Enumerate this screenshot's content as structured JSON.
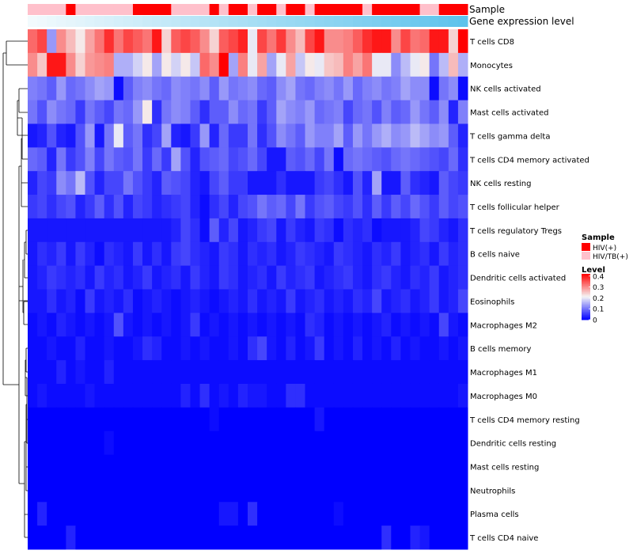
{
  "chart_data": {
    "type": "heatmap",
    "title": "",
    "annotation_tracks": {
      "sample": {
        "label": "Sample"
      },
      "gene_expression_level": {
        "label": "Gene expression level"
      }
    },
    "rows": [
      "T cells CD8",
      "Monocytes",
      "NK cells activated",
      "Mast cells activated",
      "T cells gamma delta",
      "T cells CD4 memory activated",
      "NK cells resting",
      "T cells follicular helper",
      "T cells regulatory  Tregs",
      "B cells naive",
      "Dendritic cells activated",
      "Eosinophils",
      "Macrophages M2",
      "B cells memory",
      "Macrophages M1",
      "Macrophages M0",
      "T cells CD4 memory resting",
      "Dendritic cells resting",
      "Mast cells resting",
      "Neutrophils",
      "Plasma cells",
      "T cells CD4 naive"
    ],
    "sample_groups": [
      "HIV/TB(+)",
      "HIV/TB(+)",
      "HIV/TB(+)",
      "HIV/TB(+)",
      "HIV(+)",
      "HIV/TB(+)",
      "HIV/TB(+)",
      "HIV/TB(+)",
      "HIV/TB(+)",
      "HIV/TB(+)",
      "HIV/TB(+)",
      "HIV(+)",
      "HIV(+)",
      "HIV(+)",
      "HIV(+)",
      "HIV/TB(+)",
      "HIV/TB(+)",
      "HIV/TB(+)",
      "HIV/TB(+)",
      "HIV(+)",
      "HIV/TB(+)",
      "HIV(+)",
      "HIV(+)",
      "HIV/TB(+)",
      "HIV(+)",
      "HIV(+)",
      "HIV/TB(+)",
      "HIV(+)",
      "HIV(+)",
      "HIV/TB(+)",
      "HIV(+)",
      "HIV(+)",
      "HIV(+)",
      "HIV(+)",
      "HIV(+)",
      "HIV/TB(+)",
      "HIV(+)",
      "HIV(+)",
      "HIV(+)",
      "HIV(+)",
      "HIV(+)",
      "HIV/TB(+)",
      "HIV/TB(+)",
      "HIV(+)",
      "HIV(+)",
      "HIV(+)"
    ],
    "gene_expression_level": [
      0.0,
      0.022,
      0.044,
      0.067,
      0.089,
      0.111,
      0.133,
      0.156,
      0.178,
      0.2,
      0.222,
      0.244,
      0.267,
      0.289,
      0.311,
      0.333,
      0.356,
      0.378,
      0.4,
      0.422,
      0.444,
      0.467,
      0.489,
      0.511,
      0.533,
      0.556,
      0.578,
      0.6,
      0.622,
      0.644,
      0.667,
      0.689,
      0.711,
      0.733,
      0.756,
      0.778,
      0.8,
      0.822,
      0.844,
      0.867,
      0.889,
      0.911,
      0.933,
      0.956,
      0.978,
      1.0
    ],
    "values": [
      [
        0.33,
        0.36,
        0.13,
        0.3,
        0.26,
        0.22,
        0.28,
        0.32,
        0.38,
        0.32,
        0.36,
        0.34,
        0.32,
        0.4,
        0.24,
        0.34,
        0.36,
        0.34,
        0.3,
        0.24,
        0.34,
        0.36,
        0.39,
        0.2,
        0.36,
        0.32,
        0.37,
        0.3,
        0.26,
        0.36,
        0.4,
        0.3,
        0.3,
        0.31,
        0.34,
        0.38,
        0.4,
        0.4,
        0.3,
        0.36,
        0.32,
        0.33,
        0.4,
        0.4,
        0.24,
        0.42
      ],
      [
        0.3,
        0.25,
        0.4,
        0.4,
        0.3,
        0.24,
        0.29,
        0.3,
        0.31,
        0.15,
        0.15,
        0.18,
        0.22,
        0.14,
        0.22,
        0.18,
        0.22,
        0.17,
        0.33,
        0.3,
        0.42,
        0.14,
        0.31,
        0.2,
        0.28,
        0.14,
        0.2,
        0.28,
        0.17,
        0.22,
        0.2,
        0.25,
        0.26,
        0.31,
        0.28,
        0.32,
        0.2,
        0.2,
        0.12,
        0.16,
        0.2,
        0.22,
        0.1,
        0.16,
        0.26,
        0.15
      ],
      [
        0.11,
        0.1,
        0.08,
        0.13,
        0.09,
        0.1,
        0.12,
        0.14,
        0.13,
        0.01,
        0.08,
        0.11,
        0.12,
        0.1,
        0.09,
        0.12,
        0.11,
        0.1,
        0.12,
        0.08,
        0.13,
        0.1,
        0.11,
        0.12,
        0.09,
        0.08,
        0.12,
        0.14,
        0.1,
        0.09,
        0.11,
        0.12,
        0.1,
        0.13,
        0.09,
        0.11,
        0.12,
        0.1,
        0.11,
        0.14,
        0.12,
        0.12,
        0.01,
        0.1,
        0.12,
        0.01
      ],
      [
        0.1,
        0.07,
        0.12,
        0.1,
        0.09,
        0.05,
        0.1,
        0.08,
        0.06,
        0.1,
        0.09,
        0.13,
        0.22,
        0.04,
        0.1,
        0.12,
        0.11,
        0.08,
        0.04,
        0.08,
        0.08,
        0.12,
        0.09,
        0.1,
        0.05,
        0.08,
        0.14,
        0.12,
        0.11,
        0.13,
        0.09,
        0.1,
        0.11,
        0.06,
        0.09,
        0.1,
        0.07,
        0.11,
        0.08,
        0.09,
        0.13,
        0.1,
        0.08,
        0.12,
        0.03,
        0.11
      ],
      [
        0.02,
        0.03,
        0.07,
        0.03,
        0.02,
        0.07,
        0.13,
        0.02,
        0.1,
        0.2,
        0.08,
        0.1,
        0.04,
        0.06,
        0.14,
        0.03,
        0.02,
        0.05,
        0.13,
        0.03,
        0.09,
        0.05,
        0.05,
        0.1,
        0.04,
        0.07,
        0.12,
        0.1,
        0.08,
        0.13,
        0.11,
        0.11,
        0.14,
        0.08,
        0.13,
        0.1,
        0.13,
        0.15,
        0.12,
        0.13,
        0.16,
        0.14,
        0.12,
        0.13,
        0.08,
        0.03
      ],
      [
        0.09,
        0.08,
        0.03,
        0.1,
        0.05,
        0.07,
        0.11,
        0.06,
        0.1,
        0.08,
        0.07,
        0.1,
        0.05,
        0.09,
        0.05,
        0.14,
        0.07,
        0.03,
        0.07,
        0.08,
        0.09,
        0.06,
        0.07,
        0.09,
        0.06,
        0.02,
        0.02,
        0.08,
        0.07,
        0.09,
        0.06,
        0.1,
        0.01,
        0.09,
        0.1,
        0.09,
        0.08,
        0.07,
        0.09,
        0.1,
        0.09,
        0.08,
        0.07,
        0.06,
        0.09,
        0.04
      ],
      [
        0.03,
        0.06,
        0.05,
        0.12,
        0.1,
        0.16,
        0.07,
        0.03,
        0.06,
        0.06,
        0.1,
        0.07,
        0.05,
        0.03,
        0.08,
        0.07,
        0.06,
        0.03,
        0.02,
        0.06,
        0.08,
        0.05,
        0.05,
        0.02,
        0.02,
        0.02,
        0.04,
        0.02,
        0.02,
        0.02,
        0.05,
        0.06,
        0.04,
        0.02,
        0.07,
        0.03,
        0.14,
        0.02,
        0.02,
        0.08,
        0.04,
        0.03,
        0.02,
        0.08,
        0.06,
        0.05
      ],
      [
        0.05,
        0.06,
        0.04,
        0.06,
        0.07,
        0.03,
        0.05,
        0.08,
        0.04,
        0.07,
        0.03,
        0.06,
        0.05,
        0.03,
        0.04,
        0.05,
        0.06,
        0.03,
        0.01,
        0.04,
        0.06,
        0.03,
        0.06,
        0.07,
        0.1,
        0.08,
        0.09,
        0.06,
        0.1,
        0.05,
        0.07,
        0.08,
        0.06,
        0.05,
        0.07,
        0.04,
        0.08,
        0.05,
        0.08,
        0.06,
        0.09,
        0.07,
        0.05,
        0.08,
        0.06,
        0.07
      ],
      [
        0.02,
        0.02,
        0.02,
        0.02,
        0.02,
        0.02,
        0.02,
        0.02,
        0.02,
        0.02,
        0.02,
        0.02,
        0.02,
        0.02,
        0.02,
        0.03,
        0.06,
        0.04,
        0.01,
        0.08,
        0.03,
        0.06,
        0.02,
        0.03,
        0.05,
        0.06,
        0.02,
        0.05,
        0.03,
        0.02,
        0.05,
        0.04,
        0.01,
        0.04,
        0.03,
        0.04,
        0.01,
        0.02,
        0.02,
        0.02,
        0.03,
        0.06,
        0.05,
        0.03,
        0.02,
        0.04
      ],
      [
        0.02,
        0.04,
        0.03,
        0.05,
        0.02,
        0.05,
        0.03,
        0.01,
        0.04,
        0.03,
        0.02,
        0.05,
        0.02,
        0.04,
        0.02,
        0.05,
        0.06,
        0.04,
        0.03,
        0.02,
        0.05,
        0.04,
        0.02,
        0.04,
        0.03,
        0.04,
        0.02,
        0.03,
        0.05,
        0.04,
        0.03,
        0.02,
        0.05,
        0.04,
        0.03,
        0.02,
        0.04,
        0.03,
        0.05,
        0.02,
        0.03,
        0.04,
        0.02,
        0.05,
        0.03,
        0.04
      ],
      [
        0.02,
        0.03,
        0.05,
        0.04,
        0.03,
        0.04,
        0.02,
        0.05,
        0.03,
        0.04,
        0.02,
        0.03,
        0.05,
        0.02,
        0.03,
        0.04,
        0.02,
        0.05,
        0.03,
        0.02,
        0.05,
        0.04,
        0.02,
        0.03,
        0.04,
        0.02,
        0.05,
        0.03,
        0.04,
        0.05,
        0.02,
        0.03,
        0.04,
        0.05,
        0.03,
        0.02,
        0.04,
        0.05,
        0.03,
        0.02,
        0.04,
        0.03,
        0.05,
        0.02,
        0.03,
        0.04
      ],
      [
        0.02,
        0.02,
        0.04,
        0.02,
        0.03,
        0.01,
        0.05,
        0.02,
        0.03,
        0.02,
        0.04,
        0.01,
        0.02,
        0.03,
        0.02,
        0.01,
        0.02,
        0.03,
        0.02,
        0.01,
        0.02,
        0.03,
        0.02,
        0.04,
        0.02,
        0.03,
        0.02,
        0.05,
        0.02,
        0.03,
        0.04,
        0.02,
        0.03,
        0.02,
        0.04,
        0.03,
        0.06,
        0.02,
        0.03,
        0.04,
        0.02,
        0.03,
        0.05,
        0.02,
        0.03,
        0.06
      ],
      [
        0.01,
        0.02,
        0.01,
        0.03,
        0.02,
        0.01,
        0.02,
        0.01,
        0.02,
        0.07,
        0.02,
        0.01,
        0.02,
        0.01,
        0.02,
        0.01,
        0.02,
        0.05,
        0.01,
        0.02,
        0.01,
        0.02,
        0.01,
        0.02,
        0.01,
        0.02,
        0.01,
        0.02,
        0.01,
        0.04,
        0.03,
        0.01,
        0.02,
        0.01,
        0.02,
        0.01,
        0.02,
        0.03,
        0.01,
        0.02,
        0.01,
        0.02,
        0.01,
        0.06,
        0.02,
        0.01
      ],
      [
        0.01,
        0.01,
        0.02,
        0.01,
        0.01,
        0.03,
        0.01,
        0.01,
        0.02,
        0.01,
        0.01,
        0.02,
        0.04,
        0.03,
        0.01,
        0.01,
        0.02,
        0.01,
        0.02,
        0.01,
        0.01,
        0.02,
        0.01,
        0.04,
        0.06,
        0.02,
        0.01,
        0.03,
        0.01,
        0.02,
        0.05,
        0.01,
        0.02,
        0.01,
        0.03,
        0.01,
        0.02,
        0.01,
        0.03,
        0.01,
        0.02,
        0.01,
        0.01,
        0.02,
        0.01,
        0.02
      ],
      [
        0.01,
        0.01,
        0.01,
        0.03,
        0.01,
        0.02,
        0.01,
        0.01,
        0.03,
        0.01,
        0.01,
        0.01,
        0.01,
        0.01,
        0.01,
        0.01,
        0.01,
        0.01,
        0.01,
        0.01,
        0.01,
        0.01,
        0.01,
        0.01,
        0.01,
        0.01,
        0.01,
        0.01,
        0.01,
        0.01,
        0.01,
        0.01,
        0.01,
        0.01,
        0.01,
        0.01,
        0.01,
        0.01,
        0.01,
        0.01,
        0.01,
        0.01,
        0.01,
        0.01,
        0.01,
        0.01
      ],
      [
        0.01,
        0.02,
        0.01,
        0.01,
        0.01,
        0.01,
        0.02,
        0.01,
        0.01,
        0.01,
        0.01,
        0.01,
        0.01,
        0.01,
        0.01,
        0.01,
        0.03,
        0.01,
        0.04,
        0.01,
        0.02,
        0.01,
        0.03,
        0.02,
        0.02,
        0.01,
        0.01,
        0.04,
        0.04,
        0.01,
        0.01,
        0.01,
        0.01,
        0.01,
        0.01,
        0.01,
        0.01,
        0.01,
        0.01,
        0.01,
        0.01,
        0.01,
        0.01,
        0.01,
        0.01,
        0.02
      ],
      [
        0.0,
        0.0,
        0.0,
        0.0,
        0.0,
        0.0,
        0.0,
        0.0,
        0.0,
        0.0,
        0.0,
        0.0,
        0.0,
        0.0,
        0.0,
        0.0,
        0.0,
        0.0,
        0.0,
        0.01,
        0.0,
        0.0,
        0.0,
        0.0,
        0.0,
        0.0,
        0.0,
        0.0,
        0.0,
        0.0,
        0.02,
        0.0,
        0.0,
        0.0,
        0.0,
        0.0,
        0.0,
        0.0,
        0.0,
        0.0,
        0.0,
        0.0,
        0.0,
        0.0,
        0.0,
        0.0
      ],
      [
        0.0,
        0.0,
        0.0,
        0.0,
        0.0,
        0.0,
        0.0,
        0.0,
        0.01,
        0.0,
        0.0,
        0.0,
        0.0,
        0.0,
        0.0,
        0.0,
        0.0,
        0.0,
        0.0,
        0.0,
        0.0,
        0.0,
        0.0,
        0.0,
        0.0,
        0.0,
        0.0,
        0.0,
        0.0,
        0.0,
        0.0,
        0.0,
        0.0,
        0.0,
        0.0,
        0.0,
        0.0,
        0.0,
        0.0,
        0.0,
        0.0,
        0.0,
        0.0,
        0.0,
        0.0,
        0.0
      ],
      [
        0.0,
        0.0,
        0.0,
        0.0,
        0.0,
        0.0,
        0.0,
        0.0,
        0.0,
        0.0,
        0.0,
        0.0,
        0.0,
        0.0,
        0.0,
        0.0,
        0.0,
        0.0,
        0.0,
        0.0,
        0.0,
        0.0,
        0.0,
        0.0,
        0.0,
        0.0,
        0.0,
        0.0,
        0.0,
        0.0,
        0.0,
        0.0,
        0.0,
        0.0,
        0.0,
        0.0,
        0.0,
        0.0,
        0.0,
        0.0,
        0.0,
        0.0,
        0.0,
        0.0,
        0.0,
        0.0
      ],
      [
        0.0,
        0.0,
        0.0,
        0.0,
        0.0,
        0.0,
        0.0,
        0.0,
        0.0,
        0.0,
        0.0,
        0.0,
        0.0,
        0.0,
        0.0,
        0.0,
        0.0,
        0.0,
        0.0,
        0.0,
        0.0,
        0.0,
        0.0,
        0.0,
        0.0,
        0.0,
        0.0,
        0.0,
        0.0,
        0.0,
        0.0,
        0.0,
        0.0,
        0.0,
        0.0,
        0.0,
        0.0,
        0.0,
        0.0,
        0.0,
        0.0,
        0.0,
        0.0,
        0.0,
        0.0,
        0.0
      ],
      [
        0.0,
        0.03,
        0.0,
        0.0,
        0.0,
        0.0,
        0.0,
        0.0,
        0.0,
        0.0,
        0.0,
        0.0,
        0.0,
        0.0,
        0.0,
        0.0,
        0.0,
        0.0,
        0.0,
        0.0,
        0.02,
        0.02,
        0.0,
        0.04,
        0.0,
        0.0,
        0.0,
        0.0,
        0.0,
        0.0,
        0.0,
        0.0,
        0.01,
        0.0,
        0.0,
        0.0,
        0.0,
        0.0,
        0.0,
        0.0,
        0.0,
        0.0,
        0.0,
        0.0,
        0.0,
        0.0
      ],
      [
        0.0,
        0.0,
        0.0,
        0.0,
        0.03,
        0.0,
        0.0,
        0.0,
        0.0,
        0.0,
        0.0,
        0.0,
        0.0,
        0.0,
        0.0,
        0.0,
        0.0,
        0.0,
        0.0,
        0.0,
        0.0,
        0.0,
        0.0,
        0.0,
        0.0,
        0.0,
        0.0,
        0.0,
        0.0,
        0.0,
        0.0,
        0.0,
        0.0,
        0.0,
        0.0,
        0.0,
        0.0,
        0.04,
        0.0,
        0.0,
        0.03,
        0.02,
        0.0,
        0.0,
        0.0,
        0.0
      ]
    ],
    "legend": {
      "sample": {
        "title": "Sample",
        "entries": [
          {
            "label": "HIV(+)",
            "color": "#ff0000"
          },
          {
            "label": "HIV/TB(+)",
            "color": "#ffc0cb"
          }
        ]
      },
      "level": {
        "title": "Level",
        "min": 0,
        "max": 0.42,
        "ticks": [
          "0.4",
          "0.3",
          "0.2",
          "0.1",
          "0"
        ],
        "tick_values": [
          0.4,
          0.3,
          0.2,
          0.1,
          0
        ]
      }
    },
    "colors": {
      "low": "#0000ff",
      "mid": "#f5f5f5",
      "high": "#ff0000",
      "mid_value": 0.21,
      "gene_level_start": "#f2fafd",
      "gene_level_end": "#5ec3ec"
    }
  }
}
